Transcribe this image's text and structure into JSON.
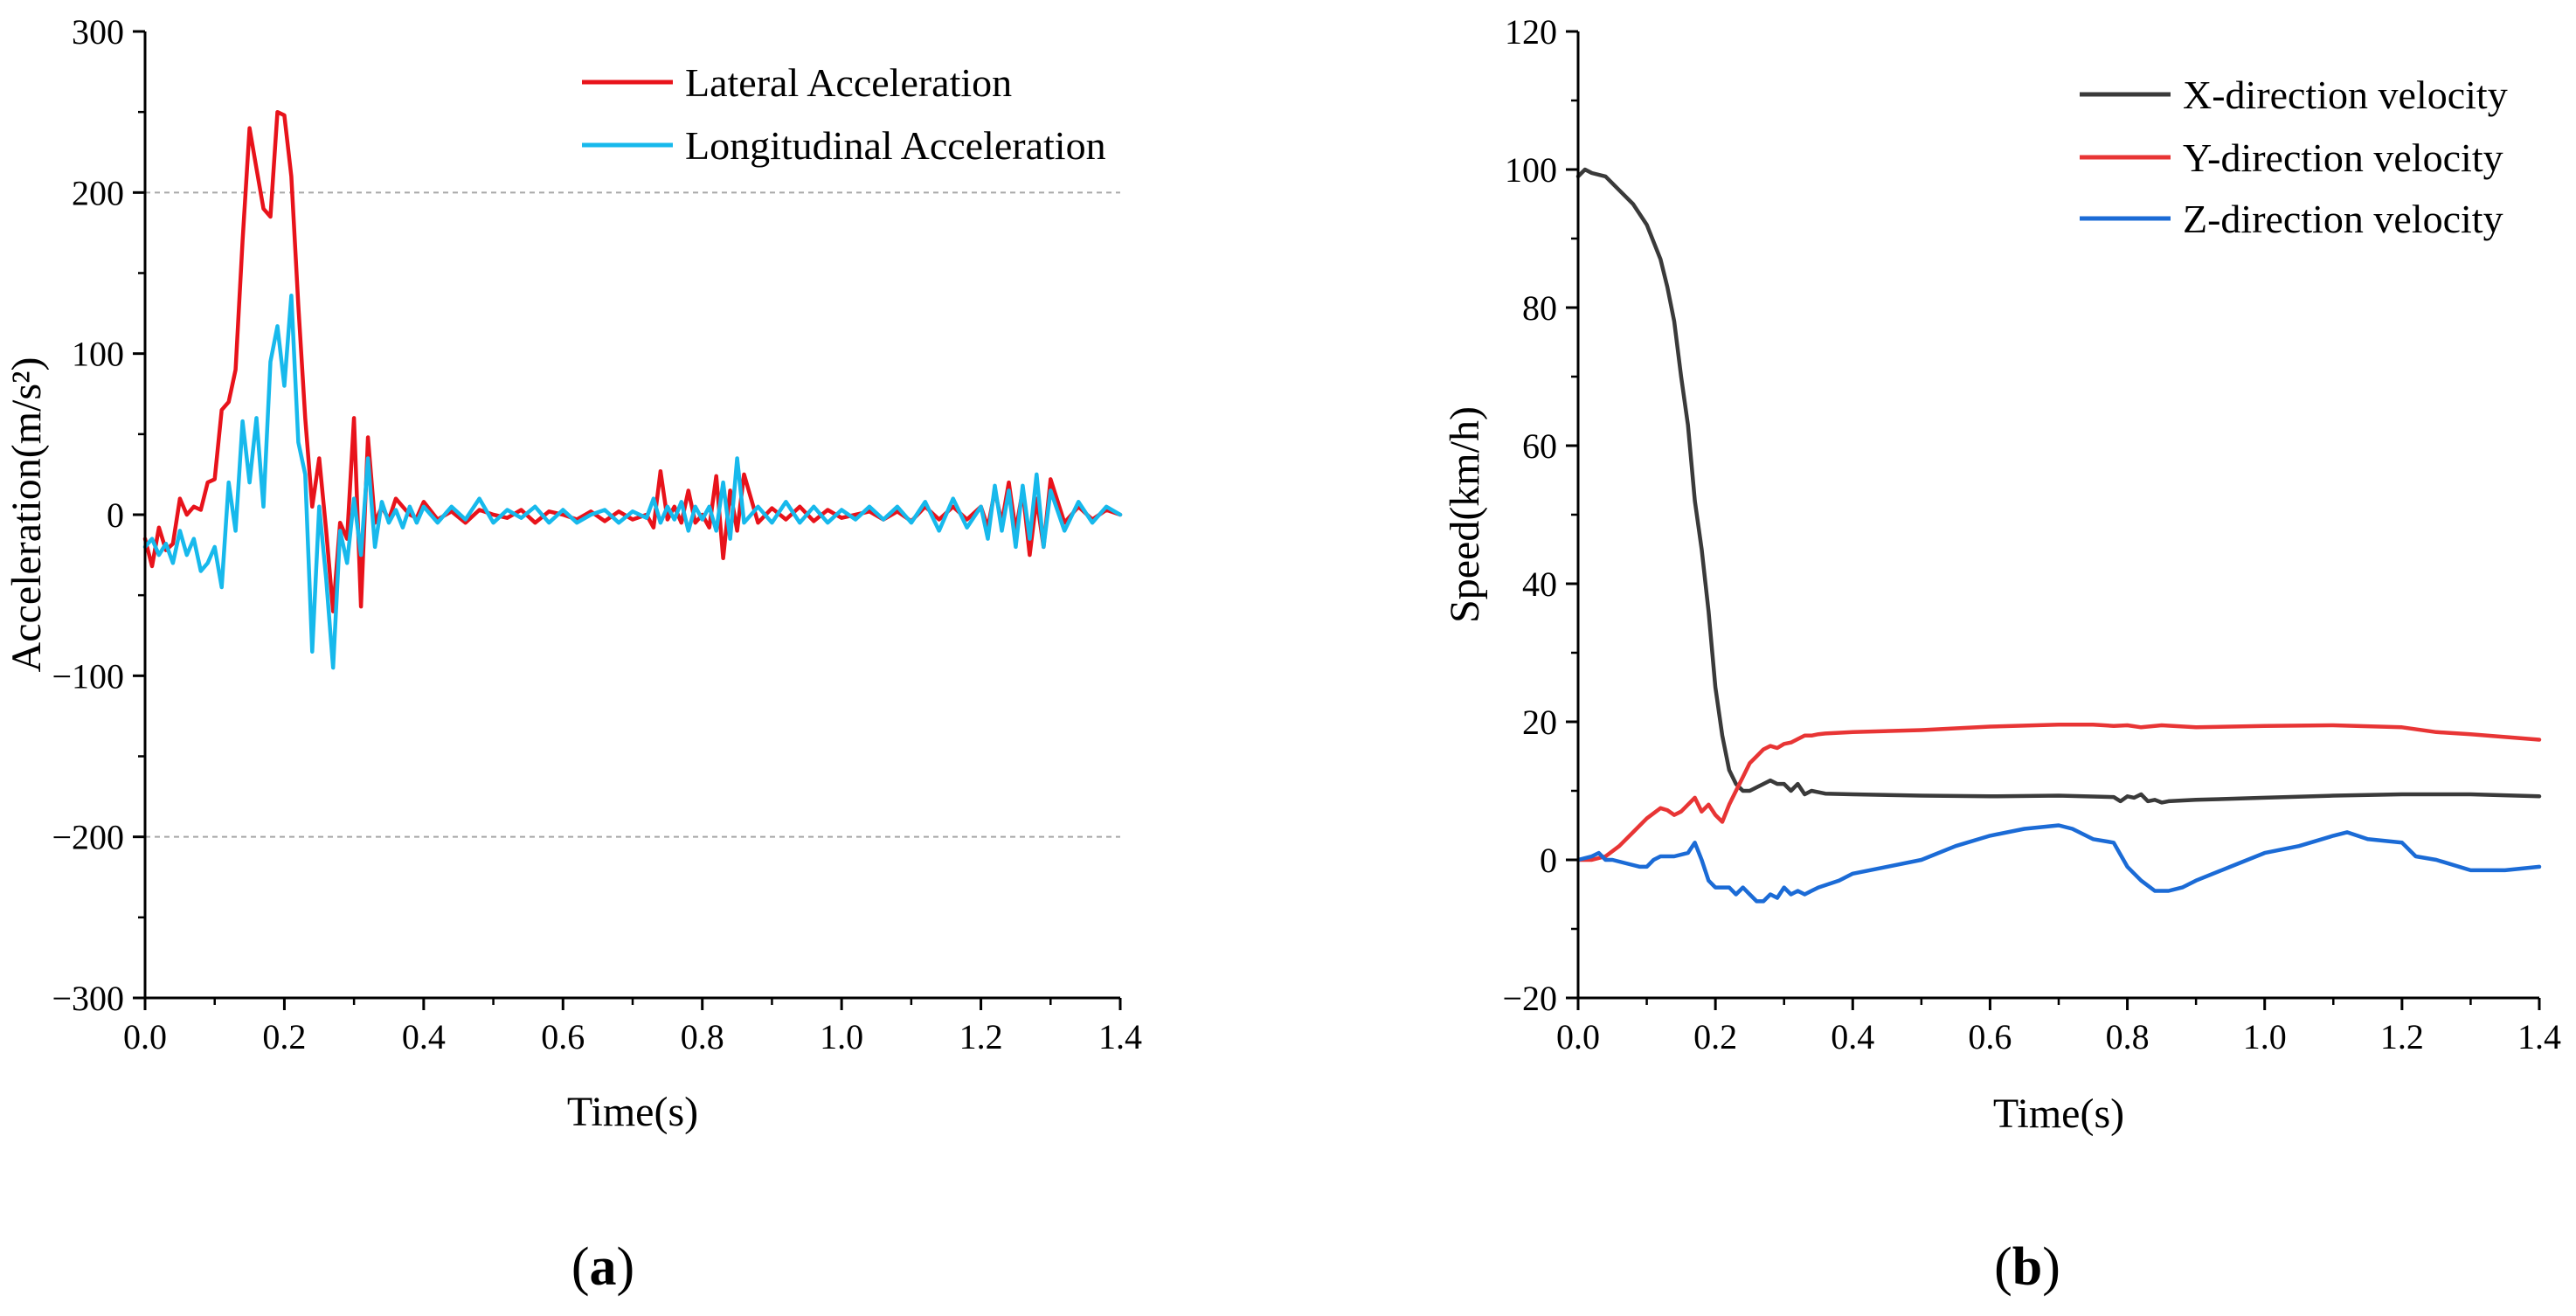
{
  "figure": {
    "panel_labels": [
      "a",
      "b"
    ]
  },
  "chart_data": [
    {
      "type": "line",
      "panel": "a",
      "title": "",
      "xlabel": "Time(s)",
      "ylabel": "Acceleration(m/s²)",
      "xlim": [
        0,
        1.4
      ],
      "ylim": [
        -300,
        300
      ],
      "xticks": [
        0,
        0.2,
        0.4,
        0.6,
        0.8,
        1.0,
        1.2,
        1.4
      ],
      "yticks": [
        -300,
        -200,
        -100,
        0,
        100,
        200,
        300
      ],
      "xtick_labels": [
        "0.0",
        "0.2",
        "0.4",
        "0.6",
        "0.8",
        "1.0",
        "1.2",
        "1.4"
      ],
      "ytick_labels": [
        "−300",
        "−200",
        "−100",
        "0",
        "100",
        "200",
        "300"
      ],
      "gridlines_y": [
        200,
        -200
      ],
      "legend_position": "top-right",
      "series": [
        {
          "name": "Lateral Acceleration",
          "color": "#e8131b",
          "x": [
            0,
            0.01,
            0.02,
            0.03,
            0.04,
            0.05,
            0.06,
            0.07,
            0.08,
            0.09,
            0.1,
            0.11,
            0.12,
            0.13,
            0.14,
            0.15,
            0.16,
            0.17,
            0.18,
            0.19,
            0.2,
            0.21,
            0.22,
            0.23,
            0.24,
            0.25,
            0.26,
            0.27,
            0.28,
            0.29,
            0.3,
            0.31,
            0.32,
            0.33,
            0.34,
            0.35,
            0.36,
            0.37,
            0.38,
            0.39,
            0.4,
            0.42,
            0.44,
            0.46,
            0.48,
            0.5,
            0.52,
            0.54,
            0.56,
            0.58,
            0.6,
            0.62,
            0.64,
            0.66,
            0.68,
            0.7,
            0.72,
            0.73,
            0.74,
            0.75,
            0.76,
            0.77,
            0.78,
            0.79,
            0.8,
            0.81,
            0.82,
            0.83,
            0.84,
            0.85,
            0.86,
            0.88,
            0.9,
            0.92,
            0.94,
            0.96,
            0.98,
            1.0,
            1.02,
            1.04,
            1.06,
            1.08,
            1.1,
            1.12,
            1.14,
            1.16,
            1.18,
            1.2,
            1.21,
            1.22,
            1.23,
            1.24,
            1.25,
            1.26,
            1.27,
            1.28,
            1.29,
            1.3,
            1.32,
            1.34,
            1.36,
            1.38,
            1.4
          ],
          "y": [
            -15,
            -32,
            -8,
            -22,
            -18,
            10,
            0,
            5,
            3,
            20,
            22,
            65,
            70,
            90,
            170,
            240,
            215,
            190,
            185,
            250,
            248,
            210,
            130,
            60,
            5,
            35,
            -10,
            -60,
            -5,
            -15,
            60,
            -57,
            48,
            -5,
            5,
            -3,
            10,
            5,
            0,
            -2,
            8,
            -3,
            2,
            -5,
            3,
            0,
            -2,
            3,
            -5,
            2,
            0,
            -3,
            2,
            -4,
            2,
            -3,
            0,
            -8,
            27,
            -3,
            5,
            -5,
            15,
            -5,
            0,
            -8,
            24,
            -27,
            15,
            -10,
            25,
            -5,
            4,
            -3,
            5,
            -4,
            3,
            -2,
            0,
            2,
            -3,
            2,
            -4,
            5,
            -3,
            5,
            -3,
            5,
            -8,
            15,
            -5,
            20,
            -10,
            15,
            -25,
            10,
            -20,
            22,
            -5,
            5,
            -3,
            3,
            0
          ]
        },
        {
          "name": "Longitudinal Acceleration",
          "color": "#17b9ec",
          "x": [
            0,
            0.01,
            0.02,
            0.03,
            0.04,
            0.05,
            0.06,
            0.07,
            0.08,
            0.09,
            0.1,
            0.11,
            0.12,
            0.13,
            0.14,
            0.15,
            0.16,
            0.17,
            0.18,
            0.19,
            0.2,
            0.21,
            0.22,
            0.23,
            0.24,
            0.25,
            0.26,
            0.27,
            0.28,
            0.29,
            0.3,
            0.31,
            0.32,
            0.33,
            0.34,
            0.35,
            0.36,
            0.37,
            0.38,
            0.39,
            0.4,
            0.42,
            0.44,
            0.46,
            0.48,
            0.5,
            0.52,
            0.54,
            0.56,
            0.58,
            0.6,
            0.62,
            0.64,
            0.66,
            0.68,
            0.7,
            0.72,
            0.73,
            0.74,
            0.75,
            0.76,
            0.77,
            0.78,
            0.79,
            0.8,
            0.81,
            0.82,
            0.83,
            0.84,
            0.85,
            0.86,
            0.88,
            0.9,
            0.92,
            0.94,
            0.96,
            0.98,
            1.0,
            1.02,
            1.04,
            1.06,
            1.08,
            1.1,
            1.12,
            1.14,
            1.16,
            1.18,
            1.2,
            1.21,
            1.22,
            1.23,
            1.24,
            1.25,
            1.26,
            1.27,
            1.28,
            1.29,
            1.3,
            1.32,
            1.34,
            1.36,
            1.38,
            1.4
          ],
          "y": [
            -20,
            -15,
            -25,
            -18,
            -30,
            -10,
            -25,
            -15,
            -35,
            -30,
            -20,
            -45,
            20,
            -10,
            58,
            20,
            60,
            5,
            95,
            117,
            80,
            136,
            45,
            25,
            -85,
            5,
            -40,
            -95,
            -10,
            -30,
            10,
            -25,
            35,
            -20,
            8,
            -5,
            3,
            -8,
            5,
            -5,
            5,
            -5,
            5,
            -3,
            10,
            -5,
            3,
            -2,
            5,
            -5,
            3,
            -5,
            0,
            3,
            -5,
            2,
            -2,
            10,
            -5,
            5,
            -3,
            8,
            -10,
            5,
            -3,
            5,
            -10,
            20,
            -15,
            35,
            -5,
            5,
            -5,
            8,
            -5,
            5,
            -5,
            3,
            -3,
            5,
            -3,
            5,
            -5,
            8,
            -10,
            10,
            -8,
            5,
            -15,
            18,
            -10,
            15,
            -20,
            18,
            -15,
            25,
            -20,
            15,
            -10,
            8,
            -5,
            5,
            0
          ]
        }
      ]
    },
    {
      "type": "line",
      "panel": "b",
      "title": "",
      "xlabel": "Time(s)",
      "ylabel": "Speed(km/h)",
      "xlim": [
        0,
        1.4
      ],
      "ylim": [
        -20,
        120
      ],
      "xticks": [
        0,
        0.2,
        0.4,
        0.6,
        0.8,
        1.0,
        1.2,
        1.4
      ],
      "yticks": [
        -20,
        0,
        20,
        40,
        60,
        80,
        100,
        120
      ],
      "xtick_labels": [
        "0.0",
        "0.2",
        "0.4",
        "0.6",
        "0.8",
        "1.0",
        "1.2",
        "1.4"
      ],
      "ytick_labels": [
        "−20",
        "0",
        "20",
        "40",
        "60",
        "80",
        "100",
        "120"
      ],
      "legend_position": "top-right",
      "series": [
        {
          "name": "X-direction velocity",
          "color": "#3a3a3a",
          "x": [
            0,
            0.01,
            0.02,
            0.04,
            0.06,
            0.08,
            0.1,
            0.12,
            0.13,
            0.14,
            0.15,
            0.16,
            0.17,
            0.18,
            0.19,
            0.2,
            0.21,
            0.22,
            0.23,
            0.24,
            0.25,
            0.26,
            0.27,
            0.28,
            0.29,
            0.3,
            0.31,
            0.32,
            0.33,
            0.34,
            0.35,
            0.36,
            0.4,
            0.5,
            0.6,
            0.7,
            0.78,
            0.79,
            0.8,
            0.81,
            0.82,
            0.83,
            0.84,
            0.85,
            0.86,
            0.9,
            1.0,
            1.1,
            1.2,
            1.3,
            1.4
          ],
          "y": [
            99,
            100,
            99.5,
            99,
            97,
            95,
            92,
            87,
            83,
            78,
            70,
            63,
            52,
            45,
            36,
            25,
            18,
            13,
            11,
            10,
            10,
            10.5,
            11,
            11.5,
            11,
            11,
            10,
            11,
            9.5,
            10,
            9.8,
            9.6,
            9.5,
            9.3,
            9.2,
            9.3,
            9.1,
            8.5,
            9.2,
            9,
            9.5,
            8.5,
            8.7,
            8.3,
            8.5,
            8.7,
            9,
            9.3,
            9.5,
            9.5,
            9.2
          ]
        },
        {
          "name": "Y-direction velocity",
          "color": "#e83535",
          "x": [
            0,
            0.02,
            0.04,
            0.06,
            0.08,
            0.1,
            0.12,
            0.13,
            0.14,
            0.15,
            0.16,
            0.17,
            0.18,
            0.19,
            0.2,
            0.21,
            0.22,
            0.23,
            0.24,
            0.25,
            0.26,
            0.27,
            0.28,
            0.29,
            0.3,
            0.31,
            0.32,
            0.33,
            0.34,
            0.35,
            0.36,
            0.4,
            0.5,
            0.6,
            0.7,
            0.75,
            0.78,
            0.8,
            0.82,
            0.85,
            0.9,
            1.0,
            1.1,
            1.2,
            1.25,
            1.3,
            1.35,
            1.4
          ],
          "y": [
            0,
            0,
            0.5,
            2,
            4,
            6,
            7.5,
            7.2,
            6.5,
            7,
            8,
            9,
            7,
            8,
            6.5,
            5.5,
            8,
            10,
            12,
            14,
            15,
            16,
            16.5,
            16.2,
            16.8,
            17,
            17.5,
            18,
            18,
            18.2,
            18.3,
            18.5,
            18.8,
            19.3,
            19.6,
            19.6,
            19.4,
            19.5,
            19.2,
            19.5,
            19.2,
            19.4,
            19.5,
            19.2,
            18.5,
            18.2,
            17.8,
            17.4
          ]
        },
        {
          "name": "Z-direction velocity",
          "color": "#1b6bd6",
          "x": [
            0,
            0.02,
            0.03,
            0.04,
            0.05,
            0.07,
            0.09,
            0.1,
            0.11,
            0.12,
            0.14,
            0.16,
            0.17,
            0.18,
            0.19,
            0.2,
            0.22,
            0.23,
            0.24,
            0.25,
            0.26,
            0.27,
            0.28,
            0.29,
            0.3,
            0.31,
            0.32,
            0.33,
            0.34,
            0.35,
            0.38,
            0.4,
            0.45,
            0.5,
            0.55,
            0.6,
            0.65,
            0.7,
            0.72,
            0.75,
            0.78,
            0.8,
            0.82,
            0.84,
            0.86,
            0.88,
            0.9,
            0.95,
            1.0,
            1.05,
            1.1,
            1.12,
            1.15,
            1.2,
            1.22,
            1.25,
            1.3,
            1.35,
            1.4
          ],
          "y": [
            0,
            0.5,
            1,
            0,
            0,
            -0.5,
            -1,
            -1,
            0,
            0.5,
            0.5,
            1,
            2.5,
            0,
            -3,
            -4,
            -4,
            -5,
            -4,
            -5,
            -6,
            -6,
            -5,
            -5.5,
            -4,
            -5,
            -4.5,
            -5,
            -4.5,
            -4,
            -3,
            -2,
            -1,
            0,
            2,
            3.5,
            4.5,
            5,
            4.5,
            3,
            2.5,
            -1,
            -3,
            -4.5,
            -4.5,
            -4,
            -3,
            -1,
            1,
            2,
            3.5,
            4,
            3,
            2.5,
            0.5,
            0,
            -1.5,
            -1.5,
            -1
          ]
        }
      ]
    }
  ]
}
